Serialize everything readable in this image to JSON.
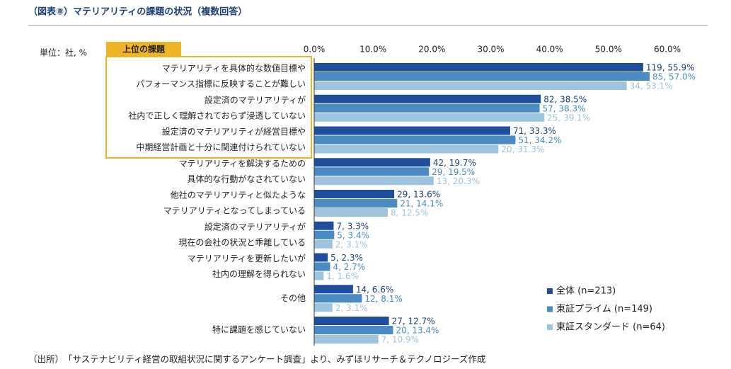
{
  "chart_data": {
    "type": "hbar",
    "title": "（図表⑧）マテリアリティの課題の状況（複数回答）",
    "unit_label": "単位：社, %",
    "highlight_label": "上位の課題",
    "source": "（出所）　「サステナビリティ経営の取組状況に関するアンケート調査」より、みずほリサーチ＆テクノロジーズ作成",
    "categories": [
      [
        "マテリアリティを具体的な数値目標や",
        "パフォーマンス指標に反映することが難しい"
      ],
      [
        "設定済のマテリアリティが",
        "社内で正しく理解されておらず浸透していない"
      ],
      [
        "設定済のマテリアリティが経営目標や",
        "中期経営計画と十分に関連付けられていない"
      ],
      [
        "マテリアリティを解決するための",
        "具体的な行動がなされていない"
      ],
      [
        "他社のマテリアリティと似たような",
        "マテリアリティとなってしまっている"
      ],
      [
        "設定済のマテリアリティが",
        "現在の会社の状況と乖離している"
      ],
      [
        "マテリアリティを更新したいが",
        "社内の理解を得られない"
      ],
      [
        "その他"
      ],
      [
        "特に課題を感じていない"
      ]
    ],
    "series": [
      {
        "name": "全体 (n=213)",
        "color": "#1f4e9c",
        "label_color": "#1f3f7a",
        "values": [
          55.9,
          38.5,
          33.3,
          19.7,
          13.6,
          3.3,
          2.3,
          6.6,
          12.7
        ],
        "value_labels": [
          "119, 55.9%",
          "82, 38.5%",
          "71, 33.3%",
          "42, 19.7%",
          "29, 13.6%",
          "7, 3.3%",
          "5, 2.3%",
          "14, 6.6%",
          "27, 12.7%"
        ]
      },
      {
        "name": "東証プライム (n=149)",
        "color": "#4a8bc4",
        "label_color": "#4a8bc4",
        "values": [
          57.0,
          38.3,
          34.2,
          19.5,
          14.1,
          3.4,
          2.7,
          8.1,
          13.4
        ],
        "value_labels": [
          "85, 57.0%",
          "57, 38.3%",
          "51, 34.2%",
          "29, 19.5%",
          "21, 14.1%",
          "5, 3.4%",
          "4, 2.7%",
          "12, 8.1%",
          "20, 13.4%"
        ]
      },
      {
        "name": "東証スタンダード (n=64)",
        "color": "#9ec3df",
        "label_color": "#9ec3df",
        "values": [
          53.1,
          39.1,
          31.3,
          20.3,
          12.5,
          3.1,
          1.6,
          3.1,
          10.9
        ],
        "value_labels": [
          "34, 53.1%",
          "25, 39.1%",
          "20, 31.3%",
          "13, 20.3%",
          "8, 12.5%",
          "2, 3.1%",
          "1, 1.6%",
          "2, 3.1%",
          "7, 10.9%"
        ]
      }
    ],
    "xlim": [
      0,
      60
    ],
    "xticks": [
      {
        "value": 0,
        "label": "0.0%"
      },
      {
        "value": 10,
        "label": "10.0%"
      },
      {
        "value": 20,
        "label": "20.0%"
      },
      {
        "value": 30,
        "label": "30.0%"
      },
      {
        "value": 40,
        "label": "40.0%"
      },
      {
        "value": 50,
        "label": "50.0%"
      },
      {
        "value": 60,
        "label": "60.0%"
      }
    ],
    "grid": false,
    "legend": "lower right"
  }
}
